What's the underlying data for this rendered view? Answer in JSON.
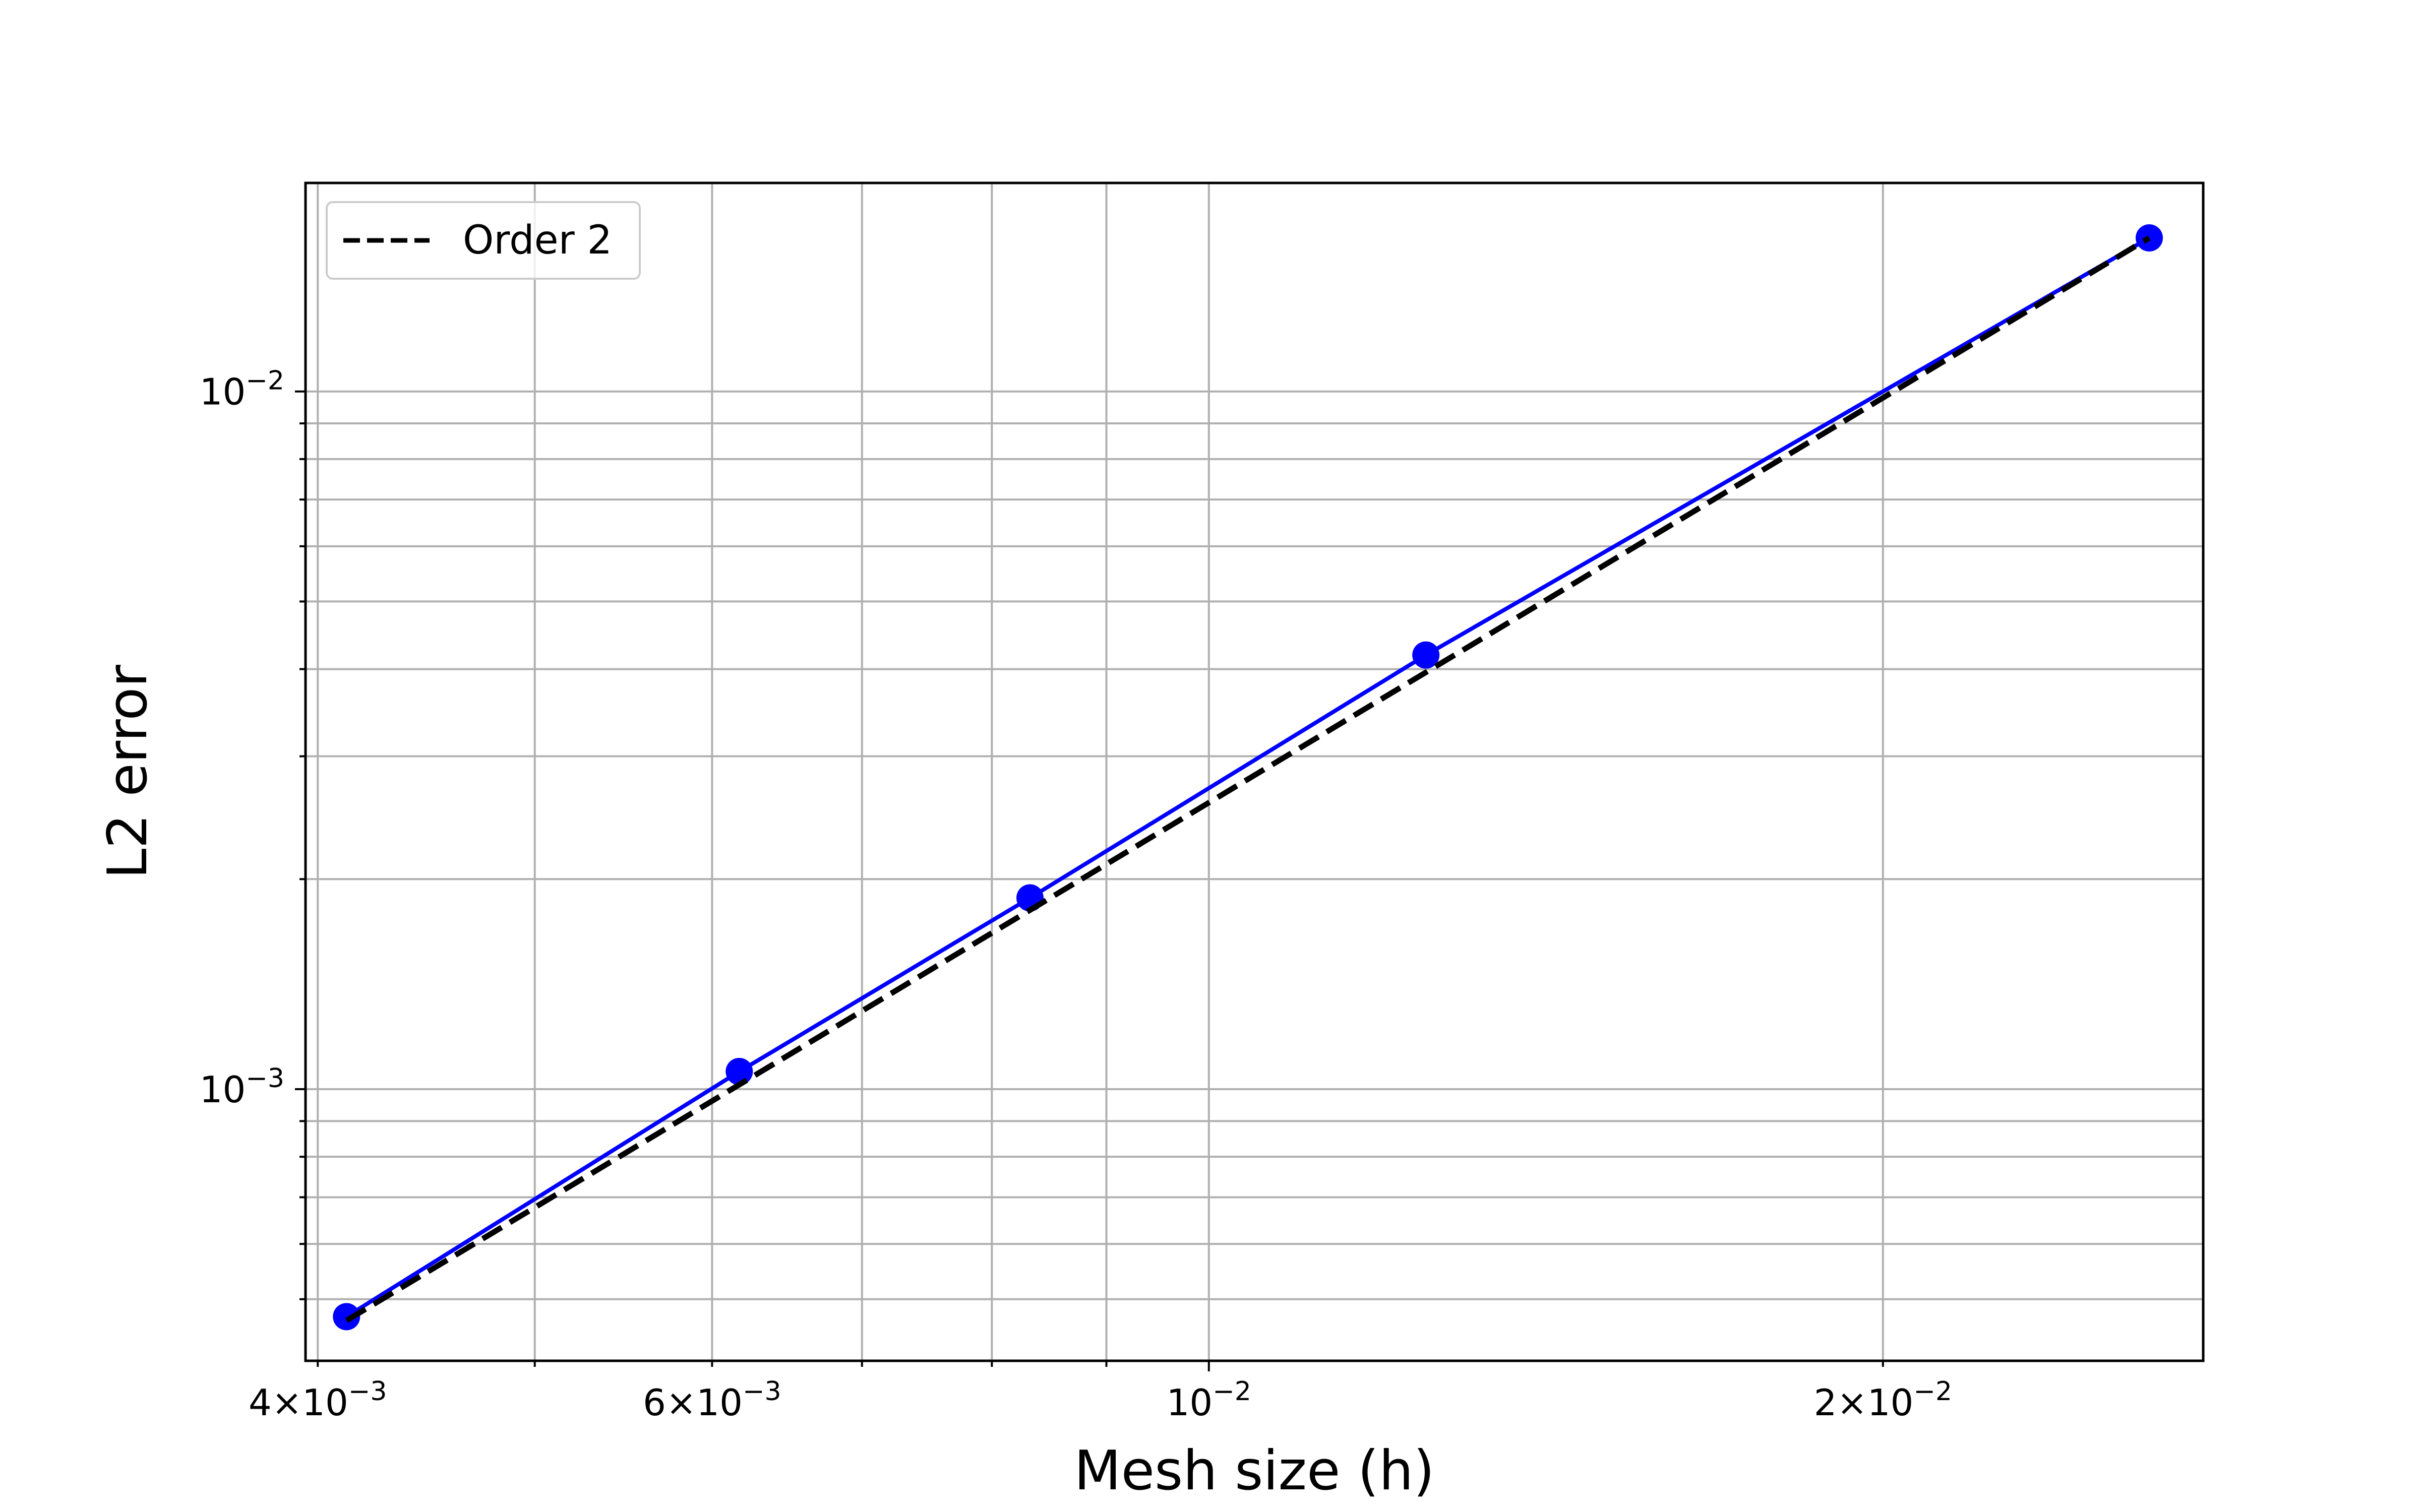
{
  "chart_data": {
    "type": "line",
    "title": "",
    "xlabel": "Mesh size (h)",
    "ylabel": "L2 error",
    "xscale": "log",
    "yscale": "log",
    "xlim": [
      0.00395,
      0.0278
    ],
    "ylim": [
      0.000408,
      0.0199
    ],
    "grid": "on (major and minor)",
    "legend": {
      "placement": "top-left",
      "entries": [
        "Order 2"
      ]
    },
    "xticks": [
      {
        "value": 0.004,
        "base": "4×10",
        "exp": "−3"
      },
      {
        "value": 0.006,
        "base": "6×10",
        "exp": "−3"
      },
      {
        "value": 0.01,
        "base": "10",
        "exp": "−2"
      },
      {
        "value": 0.02,
        "base": "2×10",
        "exp": "−2"
      }
    ],
    "yticks": [
      {
        "value": 0.001,
        "base": "10",
        "exp": "−3"
      },
      {
        "value": 0.01,
        "base": "10",
        "exp": "−2"
      }
    ],
    "series": [
      {
        "name": "",
        "style": "solid line with circle markers",
        "color": "#0000ff",
        "x": [
          0.00412,
          0.00617,
          0.00832,
          0.0125,
          0.0263
        ],
        "y": [
          0.000472,
          0.00106,
          0.00188,
          0.00419,
          0.0166
        ]
      },
      {
        "name": "Order 2",
        "style": "dashed line",
        "color": "#000000",
        "x": [
          0.00412,
          0.0263
        ],
        "y": [
          0.000466,
          0.0166
        ]
      }
    ]
  }
}
